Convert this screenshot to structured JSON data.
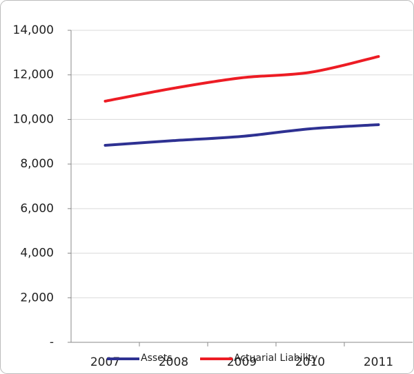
{
  "chart_data": {
    "type": "line",
    "categories": [
      "2007",
      "2008",
      "2009",
      "2010",
      "2011"
    ],
    "series": [
      {
        "name": "Assets",
        "color": "#2e3192",
        "values": [
          8840,
          9050,
          9240,
          9580,
          9765
        ]
      },
      {
        "name": "Actuarial Liability",
        "color": "#ed1c24",
        "values": [
          10820,
          11400,
          11870,
          12115,
          12825
        ]
      }
    ],
    "ylim": [
      0,
      14000
    ],
    "yticks": [
      {
        "value": 0,
        "label": "-"
      },
      {
        "value": 2000,
        "label": "2,000"
      },
      {
        "value": 4000,
        "label": "4,000"
      },
      {
        "value": 6000,
        "label": "6,000"
      },
      {
        "value": 8000,
        "label": "8,000"
      },
      {
        "value": 10000,
        "label": "10,000"
      },
      {
        "value": 12000,
        "label": "12,000"
      },
      {
        "value": 14000,
        "label": "14,000"
      }
    ],
    "grid": true,
    "legend": "bottom"
  }
}
